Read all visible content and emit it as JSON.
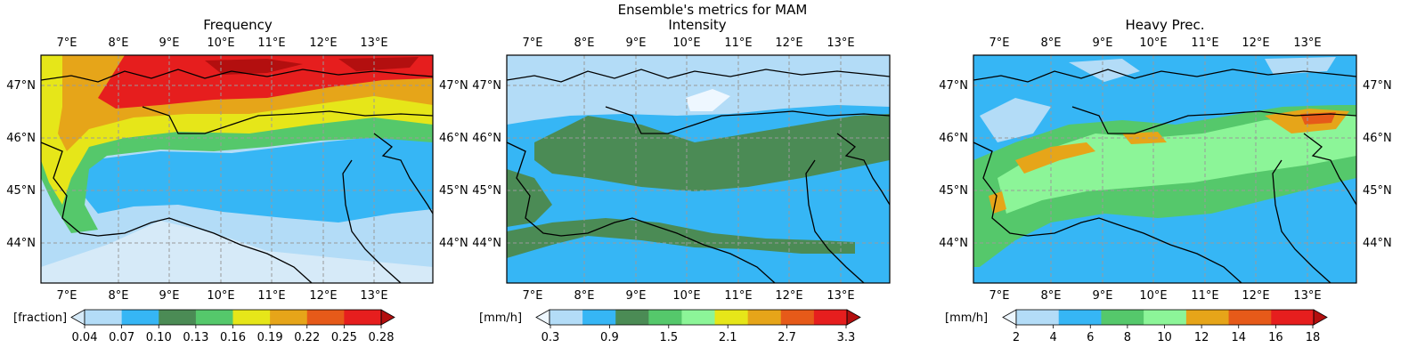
{
  "figure": {
    "suptitle": "Ensemble's metrics for MAM"
  },
  "panels": [
    {
      "title": "Frequency",
      "colorbar": {
        "label": "[fraction]",
        "ticks": [
          "0.04",
          "0.07",
          "0.10",
          "0.13",
          "0.16",
          "0.19",
          "0.22",
          "0.25",
          "0.28"
        ],
        "colors": [
          "#d6eaf8",
          "#b3dcf7",
          "#36b6f5",
          "#4b8b55",
          "#55c86b",
          "#e6e619",
          "#e6a519",
          "#e65a19",
          "#e61e1e",
          "#b30f0f"
        ]
      }
    },
    {
      "title": "Intensity",
      "colorbar": {
        "label": "[mm/h]",
        "ticks": [
          "0.3",
          "0.9",
          "1.5",
          "2.1",
          "2.7",
          "3.3"
        ],
        "colors": [
          "#eef7ff",
          "#b3dcf7",
          "#36b6f5",
          "#4b8b55",
          "#55c86b",
          "#8cf598",
          "#e6e619",
          "#e6a519",
          "#e65a19",
          "#e61e1e",
          "#b30f0f"
        ]
      }
    },
    {
      "title": "Heavy Prec.",
      "colorbar": {
        "label": "[mm/h]",
        "ticks": [
          "2",
          "4",
          "6",
          "8",
          "10",
          "12",
          "14",
          "16",
          "18"
        ],
        "colors": [
          "#eef7ff",
          "#b3dcf7",
          "#36b6f5",
          "#55c86b",
          "#8cf598",
          "#e6a519",
          "#e65a19",
          "#e61e1e",
          "#b30f0f"
        ]
      }
    }
  ],
  "lon_ticks": [
    "7°E",
    "8°E",
    "9°E",
    "10°E",
    "11°E",
    "12°E",
    "13°E"
  ],
  "lat_ticks": [
    "47°N",
    "46°N",
    "45°N",
    "44°N"
  ],
  "icons": {
    "colorbar_extend": "triangle-arrow",
    "coastline": "black-line"
  }
}
